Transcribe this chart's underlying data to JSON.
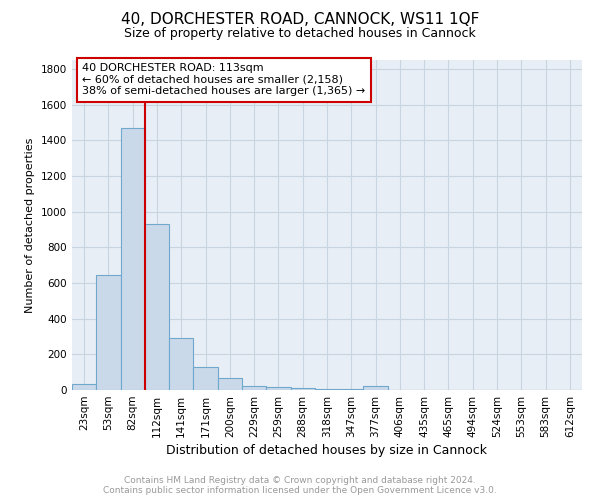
{
  "title1": "40, DORCHESTER ROAD, CANNOCK, WS11 1QF",
  "title2": "Size of property relative to detached houses in Cannock",
  "xlabel": "Distribution of detached houses by size in Cannock",
  "ylabel": "Number of detached properties",
  "bar_labels": [
    "23sqm",
    "53sqm",
    "82sqm",
    "112sqm",
    "141sqm",
    "171sqm",
    "200sqm",
    "229sqm",
    "259sqm",
    "288sqm",
    "318sqm",
    "347sqm",
    "377sqm",
    "406sqm",
    "435sqm",
    "465sqm",
    "494sqm",
    "524sqm",
    "553sqm",
    "583sqm",
    "612sqm"
  ],
  "bar_values": [
    35,
    645,
    1470,
    930,
    290,
    130,
    65,
    25,
    15,
    10,
    5,
    5,
    20,
    0,
    0,
    0,
    0,
    0,
    0,
    0,
    0
  ],
  "bar_color": "#c9d9ea",
  "bar_edge_color": "#6fa8cc",
  "grid_color": "#c8d4df",
  "background_color": "#e8eef5",
  "property_bin_index": 3,
  "red_line_color": "#cc0000",
  "annotation_line1": "40 DORCHESTER ROAD: 113sqm",
  "annotation_line2": "← 60% of detached houses are smaller (2,158)",
  "annotation_line3": "38% of semi-detached houses are larger (1,365) →",
  "annotation_box_color": "#ffffff",
  "annotation_box_edge": "#cc0000",
  "footer_line1": "Contains HM Land Registry data © Crown copyright and database right 2024.",
  "footer_line2": "Contains public sector information licensed under the Open Government Licence v3.0.",
  "ylim": [
    0,
    1850
  ],
  "yticks": [
    0,
    200,
    400,
    600,
    800,
    1000,
    1200,
    1400,
    1600,
    1800
  ],
  "title1_fontsize": 11,
  "title2_fontsize": 9,
  "ylabel_fontsize": 8,
  "xlabel_fontsize": 9,
  "tick_fontsize": 7.5,
  "annotation_fontsize": 8,
  "footer_fontsize": 6.5,
  "footer_color": "#999999"
}
